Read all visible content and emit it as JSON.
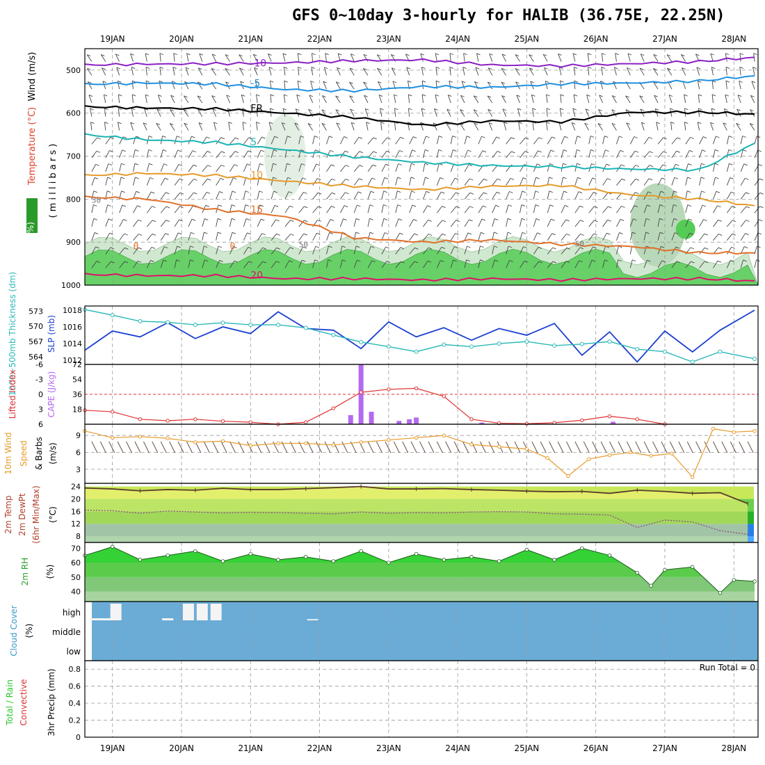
{
  "title": "GFS 0~10day 3-hourly for HALIB (36.75E, 22.25N)",
  "dates": [
    "19JAN",
    "20JAN",
    "21JAN",
    "22JAN",
    "23JAN",
    "24JAN",
    "25JAN",
    "26JAN",
    "27JAN",
    "28JAN"
  ],
  "colors": {
    "wind_barb": "#444444",
    "temp_purple": "#8a1fc4",
    "temp_blue": "#1e90e0",
    "temp_cyan": "#1bb4b4",
    "temp_orange": "#e69a2a",
    "temp_darkorange": "#e0702a",
    "temp_red": "#e0106a",
    "rh_green": "#55cc55",
    "slp_blue": "#1a3fd0",
    "thick_cyan": "#2ab8b8",
    "li_red": "#e03030",
    "cape_purple": "#b36af0",
    "wind_orange": "#e69a2a",
    "temp_yellow": "#f4f47a",
    "cloud_blue": "#6aacd6"
  },
  "panels": {
    "upper_air": {
      "label_wind": "Wind (m/s)",
      "label_temp": "Temperature (°C)",
      "label_rh": "RH (%)",
      "label_mb": "( m i l l i b a r s )",
      "ticks": [
        "500",
        "600",
        "700",
        "800",
        "900",
        "1000"
      ],
      "contour_labels": {
        "t_m10": "-10",
        "t_m5": "-5",
        "fr": "FR",
        "t_5": "5",
        "t_10": "10",
        "t_15": "15",
        "t_0": "0",
        "t_20": "20",
        "rh_30": "30",
        "rh_50": "50"
      }
    },
    "slp_thick": {
      "label_thick": "1000~500mb Thickness (dm)",
      "label_slp": "SLP (mb)",
      "thick_ticks": [
        "573",
        "570",
        "567",
        "564"
      ],
      "slp_ticks": [
        "1018",
        "1016",
        "1014",
        "1012"
      ]
    },
    "li_cape": {
      "label_li": "Lifted Index",
      "label_cape": "CAPE (J/kg)",
      "li_ticks": [
        "-6",
        "-3",
        "0",
        "3",
        "6"
      ],
      "cape_ticks": [
        "72",
        "54",
        "36",
        "18"
      ]
    },
    "wind10": {
      "label_a": "10m Wind",
      "label_b": "Speed",
      "label_c": "& Barbs",
      "label_units": "(m/s)",
      "ticks": [
        "9",
        "6",
        "3"
      ]
    },
    "temp2m": {
      "label_a": "2m Temp",
      "label_b": "2m DewPt",
      "label_c": "(6hr Min/Max)",
      "label_units": "(°C)",
      "ticks": [
        "24",
        "20",
        "16",
        "12",
        "8"
      ]
    },
    "rh2m": {
      "label_a": "2m RH",
      "label_units": "(%)",
      "ticks": [
        "70",
        "60",
        "50",
        "40"
      ]
    },
    "cloud": {
      "label_a": "Cloud Cover",
      "label_units": "(%)",
      "levels": [
        "high",
        "middle",
        "low"
      ]
    },
    "precip": {
      "label_a": "Total / Rain",
      "label_b": "Convective",
      "label_c": "3hr Precip (mm)",
      "ticks": [
        "0.8",
        "0.6",
        "0.4",
        "0.2",
        "0"
      ],
      "run_total": "Run Total = 0"
    }
  },
  "chart_data": [
    {
      "type": "line",
      "title": "Temperature isotherms (°C) vs pressure (mb)",
      "x_units": "days from 18JAN 00Z",
      "x_range": [
        0.6,
        10.3
      ],
      "ylim": [
        1000,
        450
      ],
      "series": [
        {
          "name": "-10C",
          "x": [
            0.6,
            1.5,
            2.5,
            3.5,
            4.5,
            5.5,
            6.5,
            7.5,
            8.5,
            9.5,
            10.3
          ],
          "y": [
            488,
            486,
            485,
            483,
            478,
            476,
            488,
            490,
            485,
            480,
            470
          ]
        },
        {
          "name": "-5C",
          "x": [
            0.6,
            1.5,
            2.5,
            3.5,
            4.5,
            5.5,
            6.5,
            7.5,
            8.5,
            9.5,
            10.3
          ],
          "y": [
            533,
            530,
            532,
            545,
            548,
            538,
            540,
            532,
            530,
            525,
            513
          ]
        },
        {
          "name": "FR (0C)",
          "x": [
            0.6,
            1.5,
            2.5,
            3.5,
            4.5,
            5.5,
            6.5,
            7.5,
            8.5,
            9.5,
            10.3
          ],
          "y": [
            585,
            588,
            590,
            600,
            610,
            628,
            618,
            620,
            598,
            598,
            602
          ]
        },
        {
          "name": "5C",
          "x": [
            0.6,
            1.5,
            2.5,
            3.5,
            4.5,
            5.5,
            6.5,
            7.5,
            8.5,
            9.5,
            10.3
          ],
          "y": [
            650,
            662,
            668,
            685,
            702,
            715,
            722,
            725,
            730,
            732,
            670
          ]
        },
        {
          "name": "10C",
          "x": [
            0.6,
            1.5,
            2.5,
            3.5,
            4.5,
            5.5,
            6.5,
            7.5,
            8.5,
            9.5,
            10.3
          ],
          "y": [
            745,
            740,
            745,
            758,
            770,
            778,
            770,
            768,
            790,
            800,
            815
          ]
        },
        {
          "name": "15C",
          "x": [
            0.6,
            1.5,
            2.5,
            3.5,
            4.5,
            5.5,
            6.5,
            7.5,
            8.5,
            9.5,
            10.3
          ],
          "y": [
            795,
            800,
            825,
            840,
            890,
            900,
            895,
            905,
            910,
            925,
            925
          ]
        },
        {
          "name": "20C",
          "x": [
            0.6,
            1.5,
            2.5,
            3.5,
            4.5,
            5.5,
            6.5,
            7.5,
            8.5,
            9.5,
            10.3
          ],
          "y": [
            975,
            978,
            978,
            985,
            985,
            988,
            985,
            988,
            985,
            985,
            990
          ]
        }
      ]
    },
    {
      "type": "line",
      "title": "SLP (mb) and 1000-500mb Thickness (dm)",
      "x_units": "days from 18JAN 00Z",
      "series": [
        {
          "name": "SLP",
          "axis": "right",
          "ylim": [
            1011.5,
            1018.5
          ],
          "x": [
            0.6,
            1.0,
            1.4,
            1.8,
            2.2,
            2.6,
            3.0,
            3.4,
            3.8,
            4.2,
            4.6,
            5.0,
            5.4,
            5.8,
            6.2,
            6.6,
            7.0,
            7.4,
            7.8,
            8.2,
            8.6,
            9.0,
            9.4,
            9.8,
            10.3
          ],
          "values": [
            1013.2,
            1015.5,
            1014.8,
            1016.5,
            1014.6,
            1016.0,
            1015.2,
            1017.8,
            1015.8,
            1015.6,
            1013.4,
            1016.6,
            1014.8,
            1015.9,
            1014.4,
            1015.8,
            1015.0,
            1016.4,
            1012.6,
            1015.4,
            1011.8,
            1015.5,
            1013.0,
            1015.6,
            1018.0
          ]
        },
        {
          "name": "Thickness",
          "axis": "left",
          "ylim": [
            562.5,
            574.0
          ],
          "x": [
            0.6,
            1.0,
            1.4,
            1.8,
            2.2,
            2.6,
            3.0,
            3.4,
            3.8,
            4.2,
            4.6,
            5.0,
            5.4,
            5.8,
            6.2,
            6.6,
            7.0,
            7.4,
            7.8,
            8.2,
            8.6,
            9.0,
            9.4,
            9.8,
            10.3
          ],
          "values": [
            573.3,
            572.2,
            571.0,
            570.8,
            570.3,
            570.7,
            570.3,
            570.3,
            569.7,
            568.3,
            566.9,
            566.0,
            565.0,
            566.4,
            566.0,
            566.6,
            567.0,
            566.2,
            566.5,
            567.0,
            565.5,
            565.0,
            563.0,
            565.0,
            563.6
          ]
        }
      ]
    },
    {
      "type": "bar",
      "title": "Lifted Index and CAPE (J/kg)",
      "x_units": "days from 18JAN 00Z",
      "li_ylim": [
        6,
        -6
      ],
      "li_x": [
        0.6,
        1.0,
        1.4,
        1.8,
        2.2,
        2.6,
        3.0,
        3.4,
        3.8,
        4.2,
        4.6,
        5.0,
        5.4,
        5.8,
        6.2,
        6.6,
        7.0,
        7.4,
        7.8,
        8.2,
        8.6,
        9.0
      ],
      "li_values": [
        3.2,
        3.5,
        5.0,
        5.3,
        5.0,
        5.4,
        5.6,
        6.0,
        5.6,
        2.8,
        -0.4,
        -1.0,
        -1.2,
        0.4,
        5.0,
        5.8,
        5.9,
        5.7,
        5.2,
        4.4,
        5.0,
        6.0
      ],
      "cape_ylim": [
        0,
        72
      ],
      "cape_x": [
        4.45,
        4.6,
        4.75,
        5.15,
        5.3,
        5.4,
        6.35,
        8.25
      ],
      "cape_values": [
        11,
        72,
        15,
        4,
        6,
        8,
        2,
        3
      ]
    },
    {
      "type": "line",
      "title": "10m Wind Speed (m/s)",
      "x_units": "days from 18JAN 00Z",
      "ylim": [
        0.5,
        11
      ],
      "x": [
        0.6,
        1.0,
        1.4,
        1.8,
        2.2,
        2.6,
        3.0,
        3.4,
        3.8,
        4.2,
        4.6,
        5.0,
        5.4,
        5.8,
        6.2,
        6.6,
        7.0,
        7.3,
        7.6,
        7.9,
        8.2,
        8.5,
        8.8,
        9.1,
        9.4,
        9.7,
        10.0,
        10.3
      ],
      "values": [
        9.8,
        8.6,
        8.8,
        8.5,
        7.8,
        8.0,
        7.2,
        7.6,
        7.6,
        7.3,
        7.8,
        8.2,
        8.6,
        9.0,
        7.4,
        7.0,
        6.6,
        5.0,
        1.8,
        4.8,
        5.5,
        6.0,
        5.4,
        5.8,
        1.6,
        10.2,
        9.6,
        9.8
      ]
    },
    {
      "type": "area",
      "title": "2m Temp and DewPt (°C)",
      "x_units": "days from 18JAN 00Z",
      "ylim": [
        6,
        25
      ],
      "x": [
        0.6,
        1.0,
        1.4,
        1.8,
        2.2,
        2.6,
        3.0,
        3.4,
        3.8,
        4.2,
        4.6,
        5.0,
        5.4,
        5.8,
        6.2,
        6.6,
        7.0,
        7.4,
        7.8,
        8.2,
        8.6,
        9.0,
        9.4,
        9.8,
        10.2
      ],
      "temp": [
        23.5,
        23.2,
        22.6,
        23.0,
        22.8,
        23.4,
        23.0,
        23.0,
        23.3,
        23.6,
        24.0,
        23.2,
        23.2,
        23.3,
        23.0,
        22.8,
        22.5,
        22.3,
        22.4,
        21.8,
        22.8,
        22.4,
        21.8,
        22.0,
        18.5
      ],
      "dewpt": [
        16.4,
        16.2,
        15.4,
        16.1,
        15.8,
        15.5,
        15.7,
        15.6,
        15.4,
        15.2,
        15.8,
        15.4,
        15.6,
        15.5,
        15.8,
        15.9,
        15.8,
        15.2,
        15.1,
        14.8,
        10.8,
        13.2,
        12.6,
        9.8,
        8.6
      ]
    },
    {
      "type": "area",
      "title": "2m RH (%)",
      "x_units": "days from 18JAN 00Z",
      "ylim": [
        33,
        74
      ],
      "x": [
        0.6,
        1.0,
        1.4,
        1.8,
        2.2,
        2.6,
        3.0,
        3.4,
        3.8,
        4.2,
        4.6,
        5.0,
        5.4,
        5.8,
        6.2,
        6.6,
        7.0,
        7.4,
        7.8,
        8.2,
        8.6,
        8.8,
        9.0,
        9.4,
        9.8,
        10.0,
        10.3
      ],
      "values": [
        65,
        71,
        62,
        65,
        68,
        61,
        66,
        62,
        64,
        61,
        68,
        60,
        66,
        62,
        64,
        61,
        69,
        62,
        70,
        65,
        53,
        44,
        55,
        57,
        39,
        48,
        47
      ]
    },
    {
      "type": "bar",
      "title": "Cloud Cover (%)",
      "x_units": "days from 18JAN 00Z",
      "levels": [
        "high",
        "middle",
        "low"
      ],
      "high_x": [
        0.75,
        0.9,
        1.05,
        1.8,
        2.1,
        2.3,
        2.5,
        3.9
      ],
      "high_values": [
        5,
        5,
        40,
        5,
        40,
        40,
        40,
        3
      ],
      "middle_values": [
        0
      ],
      "low_values": [
        0
      ]
    },
    {
      "type": "bar",
      "title": "3hr Precip (mm)",
      "x_units": "days from 18JAN 00Z",
      "ylim": [
        0,
        0.9
      ],
      "total_values": [
        0
      ],
      "convective_values": [
        0
      ]
    }
  ]
}
